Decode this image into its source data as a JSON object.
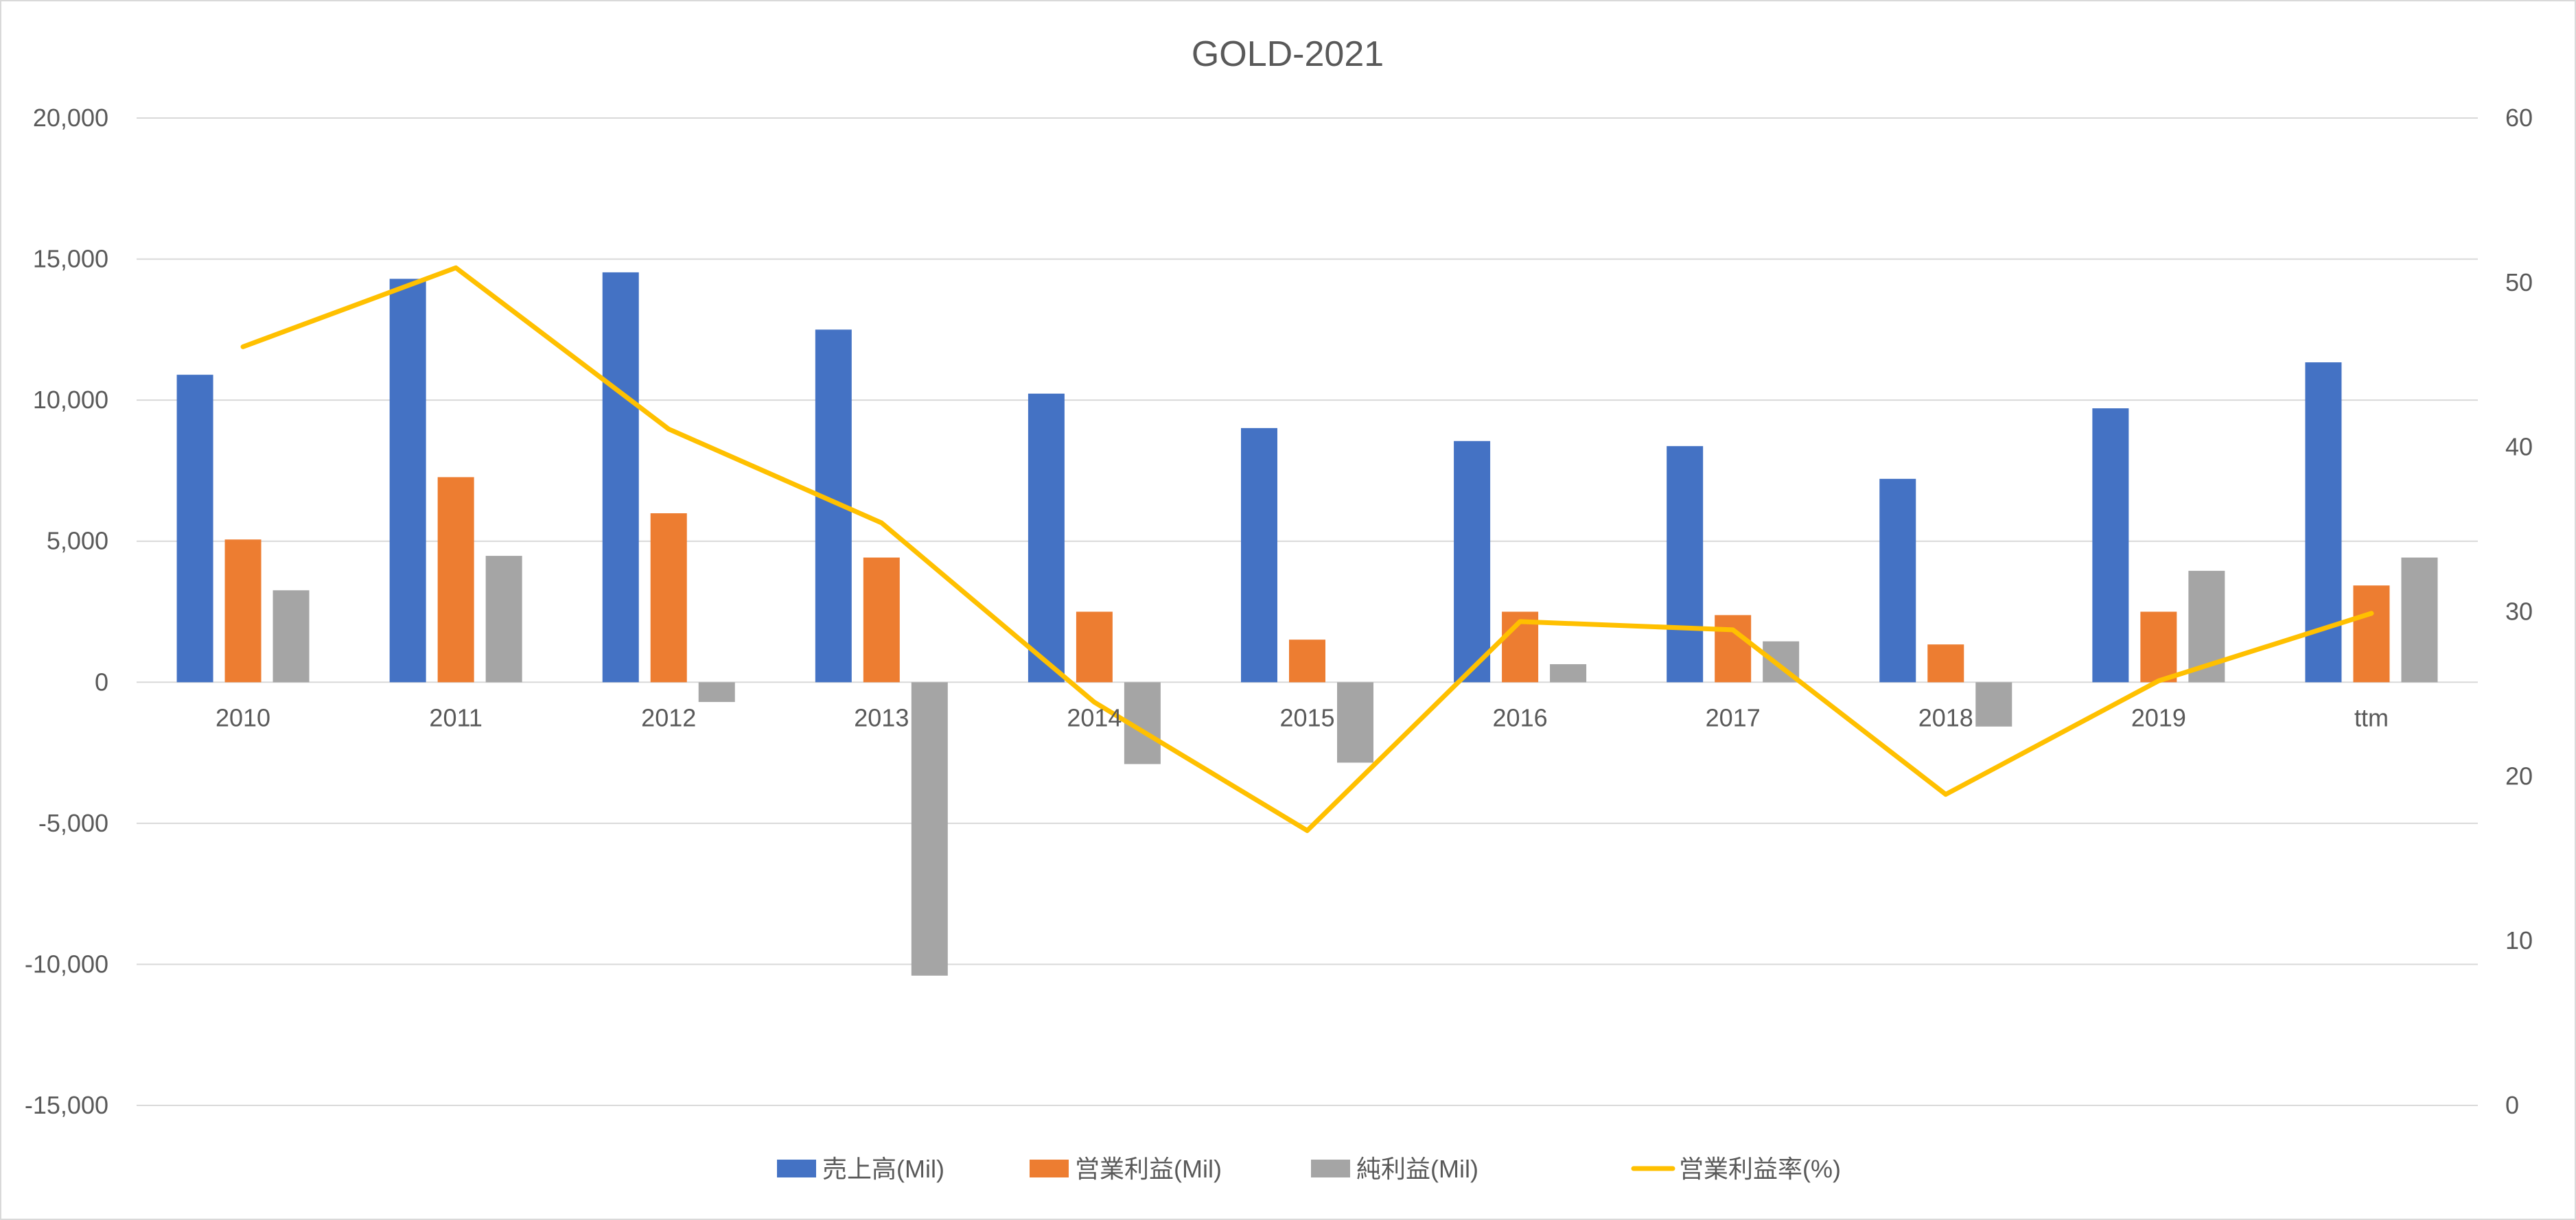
{
  "chart_data": {
    "type": "bar+line",
    "title": "GOLD-2021",
    "categories": [
      "2010",
      "2011",
      "2012",
      "2013",
      "2014",
      "2015",
      "2016",
      "2017",
      "2018",
      "2019",
      "ttm"
    ],
    "y_left": {
      "range": [
        -15000,
        20000
      ],
      "ticks": [
        -15000,
        -10000,
        -5000,
        0,
        5000,
        10000,
        15000,
        20000
      ],
      "tick_labels": [
        "-15,000",
        "-10,000",
        "-5,000",
        "0",
        "5,000",
        "10,000",
        "15,000",
        "20,000"
      ]
    },
    "y_right": {
      "range": [
        0,
        60
      ],
      "ticks": [
        0,
        10,
        20,
        30,
        40,
        50,
        60
      ],
      "tick_labels": [
        "0",
        "10",
        "20",
        "30",
        "40",
        "50",
        "60"
      ]
    },
    "grid": true,
    "legend_position": "bottom",
    "series": [
      {
        "name": "売上高(Mil)",
        "type": "bar",
        "axis": "left",
        "color": "#4472C4",
        "values": [
          10900,
          14300,
          14530,
          12500,
          10230,
          9010,
          8550,
          8370,
          7210,
          9710,
          11340
        ]
      },
      {
        "name": "営業利益(Mil)",
        "type": "bar",
        "axis": "left",
        "color": "#ED7D31",
        "values": [
          5060,
          7270,
          5990,
          4420,
          2500,
          1510,
          2500,
          2380,
          1340,
          2500,
          3430
        ]
      },
      {
        "name": "純利益(Mil)",
        "type": "bar",
        "axis": "left",
        "color": "#A5A5A5",
        "values": [
          3260,
          4480,
          -700,
          -10400,
          -2900,
          -2850,
          640,
          1450,
          -1570,
          3950,
          4420
        ]
      },
      {
        "name": "営業利益率(%)",
        "type": "line",
        "axis": "right",
        "color": "#FFC000",
        "values": [
          46.1,
          50.9,
          41.1,
          35.4,
          24.5,
          16.7,
          29.4,
          28.9,
          18.9,
          25.8,
          29.9
        ]
      }
    ]
  }
}
